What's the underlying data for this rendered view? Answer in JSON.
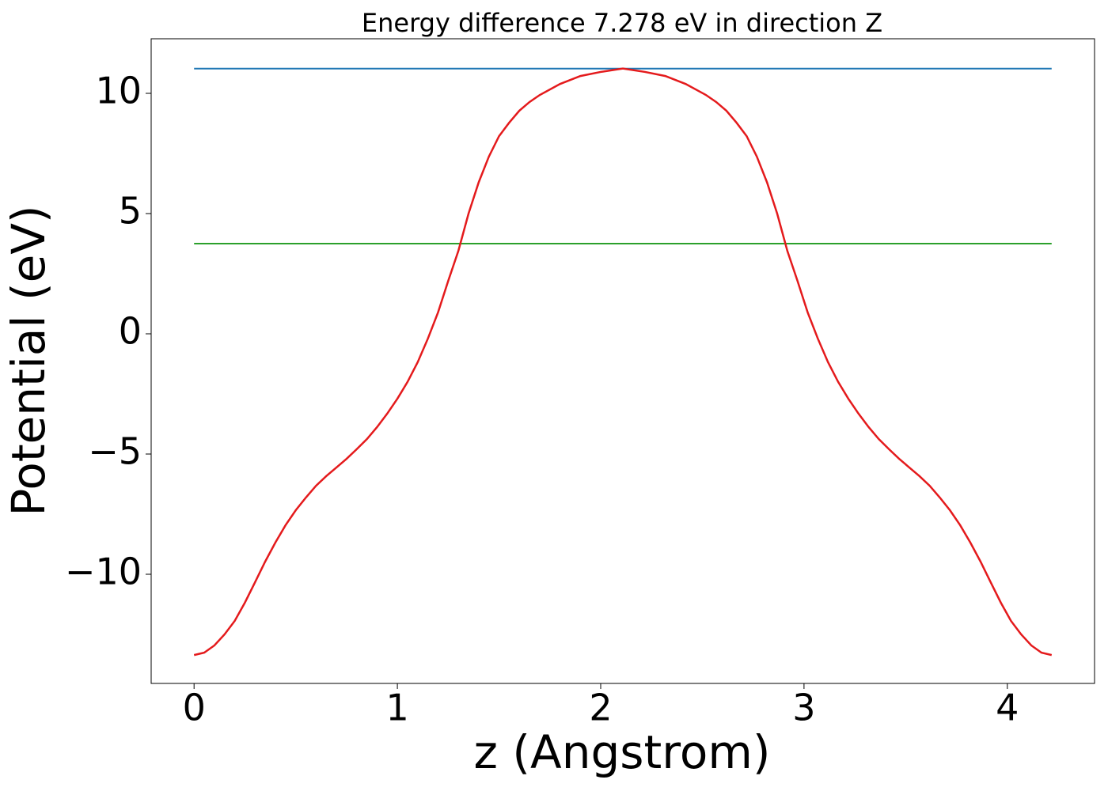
{
  "chart_data": {
    "type": "line",
    "title": "Energy difference 7.278 eV in direction Z",
    "xlabel": "z (Angstrom)",
    "ylabel": "Potential (eV)",
    "xlim": [
      -0.211,
      4.429
    ],
    "ylim": [
      -14.54,
      12.27
    ],
    "xticks": [
      0,
      1,
      2,
      3,
      4
    ],
    "yticks": [
      {
        "value": -10,
        "label": "−10"
      },
      {
        "value": -5,
        "label": "−5"
      },
      0,
      5,
      10
    ],
    "series": [
      {
        "color": "#1f77b4",
        "x": [
          0,
          4.218
        ],
        "values": [
          11.03,
          11.03
        ]
      },
      {
        "color": "#2ca02c",
        "x": [
          0,
          4.218
        ],
        "values": [
          3.752,
          3.752
        ]
      },
      {
        "color": "#e41a1c",
        "x": [
          0,
          0.05,
          0.1,
          0.15,
          0.2,
          0.25,
          0.3,
          0.35,
          0.4,
          0.45,
          0.5,
          0.55,
          0.6,
          0.65,
          0.7,
          0.75,
          0.8,
          0.85,
          0.9,
          0.95,
          1.0,
          1.05,
          1.1,
          1.15,
          1.2,
          1.25,
          1.3,
          1.35,
          1.4,
          1.45,
          1.5,
          1.55,
          1.6,
          1.65,
          1.7,
          1.8,
          1.9,
          2.0,
          2.109,
          2.218,
          2.318,
          2.418,
          2.518,
          2.568,
          2.618,
          2.668,
          2.718,
          2.768,
          2.818,
          2.868,
          2.918,
          2.968,
          3.018,
          3.068,
          3.118,
          3.168,
          3.218,
          3.268,
          3.318,
          3.368,
          3.418,
          3.468,
          3.518,
          3.568,
          3.618,
          3.668,
          3.718,
          3.768,
          3.818,
          3.868,
          3.918,
          3.968,
          4.018,
          4.068,
          4.118,
          4.168,
          4.218
        ],
        "values": [
          -13.36,
          -13.26,
          -12.96,
          -12.5,
          -11.94,
          -11.18,
          -10.33,
          -9.47,
          -8.68,
          -7.96,
          -7.34,
          -6.81,
          -6.32,
          -5.92,
          -5.56,
          -5.2,
          -4.8,
          -4.38,
          -3.88,
          -3.32,
          -2.7,
          -2.0,
          -1.18,
          -0.2,
          0.89,
          2.2,
          3.45,
          5.0,
          6.3,
          7.37,
          8.22,
          8.78,
          9.28,
          9.64,
          9.93,
          10.39,
          10.72,
          10.89,
          11.03,
          10.89,
          10.72,
          10.39,
          9.93,
          9.64,
          9.28,
          8.78,
          8.22,
          7.37,
          6.3,
          5.0,
          3.45,
          2.2,
          0.89,
          -0.2,
          -1.18,
          -2.0,
          -2.7,
          -3.32,
          -3.88,
          -4.38,
          -4.8,
          -5.2,
          -5.56,
          -5.92,
          -6.32,
          -6.81,
          -7.34,
          -7.96,
          -8.68,
          -9.47,
          -10.33,
          -11.18,
          -11.94,
          -12.5,
          -12.96,
          -13.26,
          -13.36
        ]
      }
    ]
  }
}
